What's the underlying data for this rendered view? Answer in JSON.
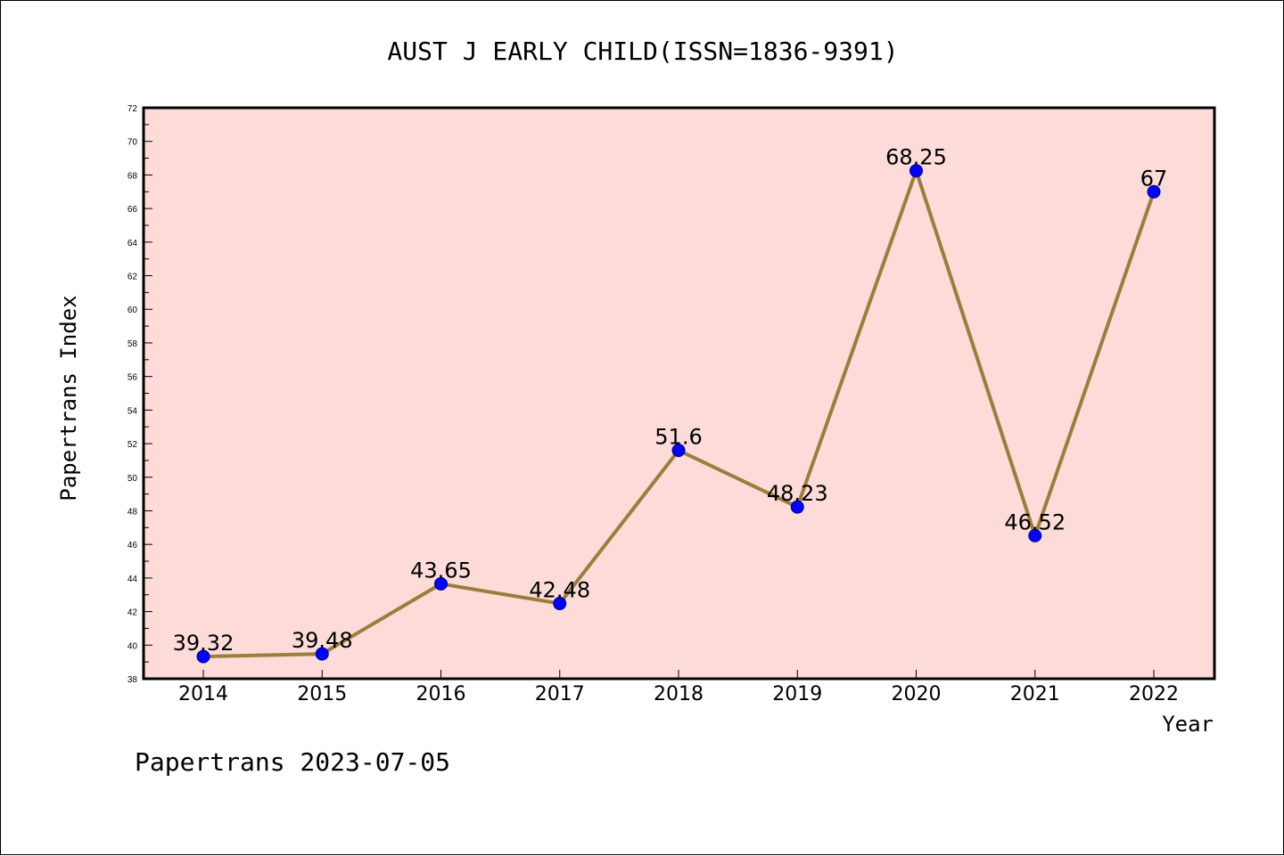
{
  "chart_data": {
    "type": "line",
    "title": "AUST J EARLY CHILD(ISSN=1836-9391)",
    "xlabel": "Year",
    "ylabel": "Papertrans Index",
    "categories": [
      "2014",
      "2015",
      "2016",
      "2017",
      "2018",
      "2019",
      "2020",
      "2021",
      "2022"
    ],
    "series": [
      {
        "values": [
          39.32,
          39.48,
          43.65,
          42.48,
          51.6,
          48.23,
          68.25,
          46.52,
          67
        ],
        "labels": [
          "39.32",
          "39.48",
          "43.65",
          "42.48",
          "51.6",
          "48.23",
          "68.25",
          "46.52",
          "67"
        ]
      }
    ],
    "ylim": [
      38,
      72
    ],
    "yticks": [
      38,
      40,
      42,
      44,
      46,
      48,
      50,
      52,
      54,
      56,
      58,
      60,
      62,
      64,
      66,
      68,
      70,
      72
    ],
    "grid": false,
    "colors": {
      "plot_background": "#fddbd9",
      "line": "#9b7e3c",
      "marker": "#0000ff",
      "marker_edge": "#00008b"
    }
  },
  "footer": "Papertrans 2023-07-05"
}
